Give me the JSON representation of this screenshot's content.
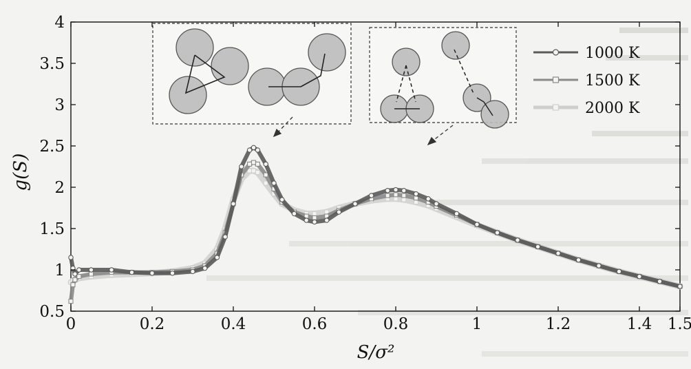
{
  "chart_data": {
    "type": "line",
    "xlabel": "S/σ²",
    "ylabel": "g(S)",
    "xlim": [
      0,
      1.5
    ],
    "ylim": [
      0.5,
      4
    ],
    "x_ticks": [
      "0",
      "0.2",
      "0.4",
      "0.6",
      "0.8",
      "1",
      "1.2",
      "1.4",
      "1.5"
    ],
    "x_tick_values": [
      0,
      0.2,
      0.4,
      0.6,
      0.8,
      1.0,
      1.2,
      1.4,
      1.5
    ],
    "y_ticks": [
      "0.5",
      "1",
      "1.5",
      "2",
      "2.5",
      "3",
      "3.5",
      "4"
    ],
    "y_tick_values": [
      0.5,
      1,
      1.5,
      2,
      2.5,
      3,
      3.5,
      4
    ],
    "grid": false,
    "legend_position": "top-right",
    "series": [
      {
        "name": "1000 K",
        "marker": "circle",
        "color": "#5a5a5a",
        "x": [
          0.0,
          0.005,
          0.01,
          0.02,
          0.05,
          0.1,
          0.15,
          0.2,
          0.25,
          0.3,
          0.33,
          0.36,
          0.38,
          0.4,
          0.42,
          0.44,
          0.45,
          0.46,
          0.48,
          0.5,
          0.52,
          0.55,
          0.58,
          0.6,
          0.63,
          0.66,
          0.7,
          0.74,
          0.78,
          0.8,
          0.82,
          0.85,
          0.88,
          0.9,
          0.95,
          1.0,
          1.05,
          1.1,
          1.15,
          1.2,
          1.25,
          1.3,
          1.35,
          1.4,
          1.45,
          1.5
        ],
        "y": [
          1.15,
          1.02,
          0.95,
          1.0,
          1.0,
          1.0,
          0.97,
          0.96,
          0.96,
          0.98,
          1.02,
          1.15,
          1.4,
          1.8,
          2.25,
          2.45,
          2.48,
          2.45,
          2.28,
          2.05,
          1.85,
          1.68,
          1.6,
          1.58,
          1.6,
          1.7,
          1.8,
          1.9,
          1.96,
          1.97,
          1.96,
          1.92,
          1.86,
          1.8,
          1.68,
          1.55,
          1.45,
          1.36,
          1.28,
          1.2,
          1.12,
          1.05,
          0.98,
          0.92,
          0.86,
          0.8
        ]
      },
      {
        "name": "1500 K",
        "marker": "square",
        "color": "#8a8a8a",
        "x": [
          0.0,
          0.005,
          0.01,
          0.02,
          0.05,
          0.1,
          0.15,
          0.2,
          0.25,
          0.3,
          0.33,
          0.36,
          0.38,
          0.4,
          0.42,
          0.44,
          0.45,
          0.46,
          0.48,
          0.5,
          0.52,
          0.55,
          0.58,
          0.6,
          0.63,
          0.66,
          0.7,
          0.74,
          0.78,
          0.8,
          0.82,
          0.85,
          0.88,
          0.9,
          0.95,
          1.0,
          1.05,
          1.1,
          1.15,
          1.2,
          1.25,
          1.3,
          1.35,
          1.4,
          1.45,
          1.5
        ],
        "y": [
          0.62,
          0.82,
          0.88,
          0.92,
          0.95,
          0.97,
          0.97,
          0.97,
          0.98,
          1.0,
          1.05,
          1.2,
          1.45,
          1.8,
          2.15,
          2.28,
          2.3,
          2.28,
          2.15,
          1.98,
          1.82,
          1.7,
          1.65,
          1.63,
          1.65,
          1.72,
          1.8,
          1.86,
          1.9,
          1.91,
          1.9,
          1.87,
          1.82,
          1.77,
          1.66,
          1.55,
          1.45,
          1.36,
          1.28,
          1.2,
          1.12,
          1.05,
          0.98,
          0.92,
          0.86,
          0.8
        ]
      },
      {
        "name": "2000 K",
        "marker": "square",
        "color": "#cfcfcf",
        "x": [
          0.0,
          0.005,
          0.01,
          0.02,
          0.05,
          0.1,
          0.15,
          0.2,
          0.25,
          0.3,
          0.33,
          0.36,
          0.38,
          0.4,
          0.42,
          0.44,
          0.45,
          0.46,
          0.48,
          0.5,
          0.52,
          0.55,
          0.58,
          0.6,
          0.63,
          0.66,
          0.7,
          0.74,
          0.78,
          0.8,
          0.82,
          0.85,
          0.88,
          0.9,
          0.95,
          1.0,
          1.05,
          1.1,
          1.15,
          1.2,
          1.25,
          1.3,
          1.35,
          1.4,
          1.45,
          1.5
        ],
        "y": [
          0.85,
          0.87,
          0.88,
          0.9,
          0.92,
          0.94,
          0.95,
          0.96,
          0.98,
          1.02,
          1.08,
          1.25,
          1.5,
          1.85,
          2.1,
          2.2,
          2.2,
          2.18,
          2.05,
          1.92,
          1.8,
          1.72,
          1.68,
          1.68,
          1.7,
          1.75,
          1.8,
          1.84,
          1.86,
          1.86,
          1.85,
          1.82,
          1.78,
          1.74,
          1.64,
          1.54,
          1.45,
          1.36,
          1.28,
          1.2,
          1.12,
          1.05,
          0.98,
          0.92,
          0.86,
          0.8
        ]
      }
    ]
  }
}
